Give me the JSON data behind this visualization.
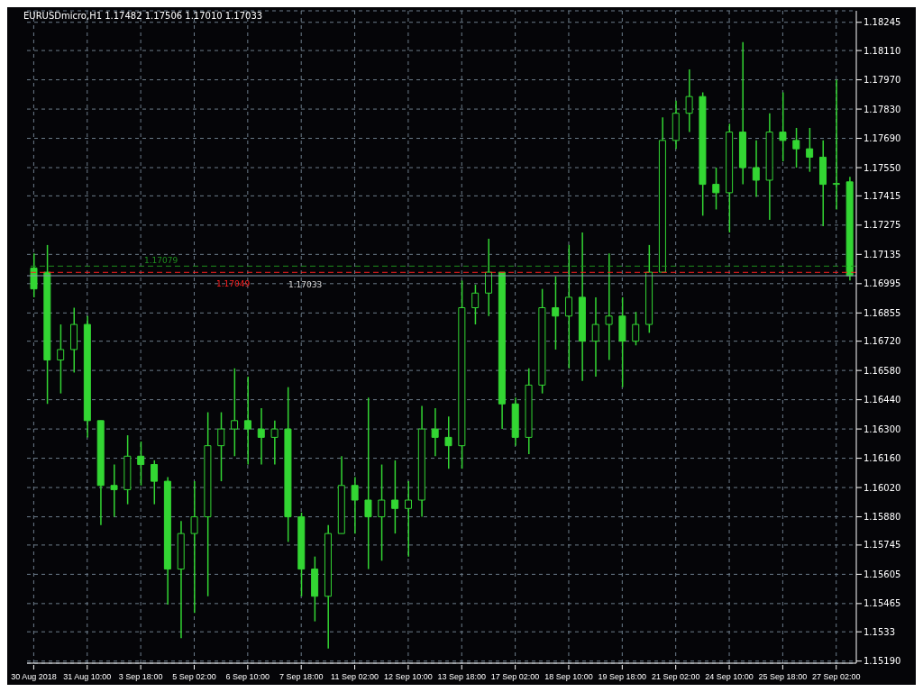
{
  "chart_data": {
    "type": "candlestick",
    "title": "EURUSDmicro,H1 1.17482 1.17506 1.17010 1.17033",
    "color": "#33d633",
    "grid": true,
    "categories": [
      "30 Aug 2018",
      null,
      null,
      null,
      "31 Aug 10:00",
      null,
      null,
      null,
      "3 Sep 18:00",
      null,
      null,
      null,
      "5 Sep 02:00",
      null,
      null,
      null,
      "6 Sep 10:00",
      null,
      null,
      null,
      "7 Sep 18:00",
      null,
      null,
      null,
      "11 Sep 02:00",
      null,
      null,
      null,
      "12 Sep 10:00",
      null,
      null,
      null,
      "13 Sep 18:00",
      null,
      null,
      null,
      "17 Sep 02:00",
      null,
      null,
      null,
      "18 Sep 10:00",
      null,
      null,
      null,
      "19 Sep 18:00",
      null,
      null,
      null,
      "21 Sep 02:00",
      null,
      null,
      null,
      "24 Sep 10:00",
      null,
      null,
      null,
      "25 Sep 18:00",
      null,
      null,
      null,
      "27 Sep 02:00",
      null
    ],
    "ohlc": [
      [
        1.1707,
        1.1714,
        1.1693,
        1.1697
      ],
      [
        1.1705,
        1.1718,
        1.1642,
        1.1663
      ],
      [
        1.1663,
        1.168,
        1.1647,
        1.1668
      ],
      [
        1.1668,
        1.1688,
        1.1657,
        1.168
      ],
      [
        1.168,
        1.1684,
        1.1626,
        1.1634
      ],
      [
        1.1634,
        1.1634,
        1.1584,
        1.1603
      ],
      [
        1.1603,
        1.1613,
        1.1588,
        1.1601
      ],
      [
        1.1601,
        1.1627,
        1.1594,
        1.1617
      ],
      [
        1.1617,
        1.1624,
        1.1603,
        1.1613
      ],
      [
        1.1613,
        1.1615,
        1.1594,
        1.1605
      ],
      [
        1.1605,
        1.1607,
        1.1546,
        1.1563
      ],
      [
        1.1563,
        1.1586,
        1.153,
        1.158
      ],
      [
        1.158,
        1.1605,
        1.1542,
        1.1588
      ],
      [
        1.1588,
        1.1638,
        1.155,
        1.1622
      ],
      [
        1.1622,
        1.1638,
        1.1605,
        1.163
      ],
      [
        1.163,
        1.1659,
        1.1617,
        1.1634
      ],
      [
        1.1634,
        1.1655,
        1.1613,
        1.163
      ],
      [
        1.163,
        1.164,
        1.1613,
        1.1626
      ],
      [
        1.1626,
        1.1634,
        1.1613,
        1.163
      ],
      [
        1.163,
        1.165,
        1.1576,
        1.1588
      ],
      [
        1.1588,
        1.159,
        1.155,
        1.1563
      ],
      [
        1.1563,
        1.1569,
        1.1538,
        1.155
      ],
      [
        1.155,
        1.1584,
        1.1525,
        1.158
      ],
      [
        1.158,
        1.1617,
        1.158,
        1.1603
      ],
      [
        1.1603,
        1.1607,
        1.158,
        1.1596
      ],
      [
        1.1596,
        1.1645,
        1.1563,
        1.1588
      ],
      [
        1.1588,
        1.1613,
        1.1567,
        1.1596
      ],
      [
        1.1596,
        1.1615,
        1.158,
        1.1592
      ],
      [
        1.1592,
        1.1605,
        1.1569,
        1.1596
      ],
      [
        1.1596,
        1.1641,
        1.1588,
        1.163
      ],
      [
        1.163,
        1.164,
        1.1617,
        1.1626
      ],
      [
        1.1626,
        1.1636,
        1.1611,
        1.1622
      ],
      [
        1.1622,
        1.1701,
        1.1611,
        1.1688
      ],
      [
        1.1688,
        1.1699,
        1.168,
        1.1695
      ],
      [
        1.1695,
        1.1721,
        1.1684,
        1.1705
      ],
      [
        1.1705,
        1.1705,
        1.163,
        1.1642
      ],
      [
        1.1642,
        1.1645,
        1.1622,
        1.1626
      ],
      [
        1.1626,
        1.1659,
        1.1618,
        1.1651
      ],
      [
        1.1651,
        1.1697,
        1.1647,
        1.1688
      ],
      [
        1.1688,
        1.1703,
        1.1668,
        1.1684
      ],
      [
        1.1684,
        1.1718,
        1.1659,
        1.1693
      ],
      [
        1.1693,
        1.1724,
        1.1653,
        1.1672
      ],
      [
        1.1672,
        1.1693,
        1.1655,
        1.168
      ],
      [
        1.168,
        1.1714,
        1.1663,
        1.1684
      ],
      [
        1.1684,
        1.1693,
        1.165,
        1.1672
      ],
      [
        1.1672,
        1.1686,
        1.167,
        1.168
      ],
      [
        1.168,
        1.1718,
        1.1676,
        1.1705
      ],
      [
        1.1705,
        1.1779,
        1.1705,
        1.1768
      ],
      [
        1.1768,
        1.1787,
        1.1764,
        1.1781
      ],
      [
        1.1781,
        1.1802,
        1.1772,
        1.1789
      ],
      [
        1.1789,
        1.1791,
        1.1732,
        1.1747
      ],
      [
        1.1747,
        1.1755,
        1.1735,
        1.1743
      ],
      [
        1.1743,
        1.1776,
        1.1724,
        1.1772
      ],
      [
        1.1772,
        1.1815,
        1.1747,
        1.1755
      ],
      [
        1.1755,
        1.1768,
        1.1741,
        1.1749
      ],
      [
        1.1749,
        1.1781,
        1.173,
        1.1772
      ],
      [
        1.1772,
        1.1791,
        1.1758,
        1.1768
      ],
      [
        1.1768,
        1.1774,
        1.1755,
        1.1764
      ],
      [
        1.1764,
        1.1774,
        1.1753,
        1.176
      ],
      [
        1.176,
        1.1768,
        1.1727,
        1.1747
      ],
      [
        1.1747,
        1.1797,
        1.1735,
        1.1747
      ],
      [
        1.17482,
        1.17506,
        1.1701,
        1.17033
      ]
    ],
    "ylim": [
      1.1518,
      1.183
    ],
    "yticks": [
      {
        "value": 1.1519,
        "label": "1.15190"
      },
      1.1533,
      1.15465,
      1.15605,
      1.15745,
      {
        "value": 1.1588,
        "label": "1.15880"
      },
      {
        "value": 1.1602,
        "label": "1.16020"
      },
      {
        "value": 1.1616,
        "label": "1.16160"
      },
      {
        "value": 1.163,
        "label": "1.16300"
      },
      {
        "value": 1.1644,
        "label": "1.16440"
      },
      {
        "value": 1.1658,
        "label": "1.16580"
      },
      {
        "value": 1.1672,
        "label": "1.16720"
      },
      1.16855,
      1.16995,
      1.17135,
      1.17275,
      1.17415,
      {
        "value": 1.1755,
        "label": "1.17550"
      },
      {
        "value": 1.1769,
        "label": "1.17690"
      },
      {
        "value": 1.1783,
        "label": "1.17830"
      },
      {
        "value": 1.1797,
        "label": "1.17970"
      },
      {
        "value": 1.1811,
        "label": "1.18110"
      },
      1.18245
    ],
    "ref_lines": [
      {
        "axis": "y",
        "value": 1.17079,
        "label": "1.17079",
        "color": "#1f8f1f",
        "line_style": "dashed"
      },
      {
        "axis": "y",
        "value": 1.17049,
        "label": "1.17049",
        "color": "#ff2020",
        "line_style": "dashed"
      },
      {
        "axis": "y",
        "value": 1.17033,
        "label": "1.17033",
        "color": "#8899aa",
        "line_style": "solid"
      }
    ]
  }
}
